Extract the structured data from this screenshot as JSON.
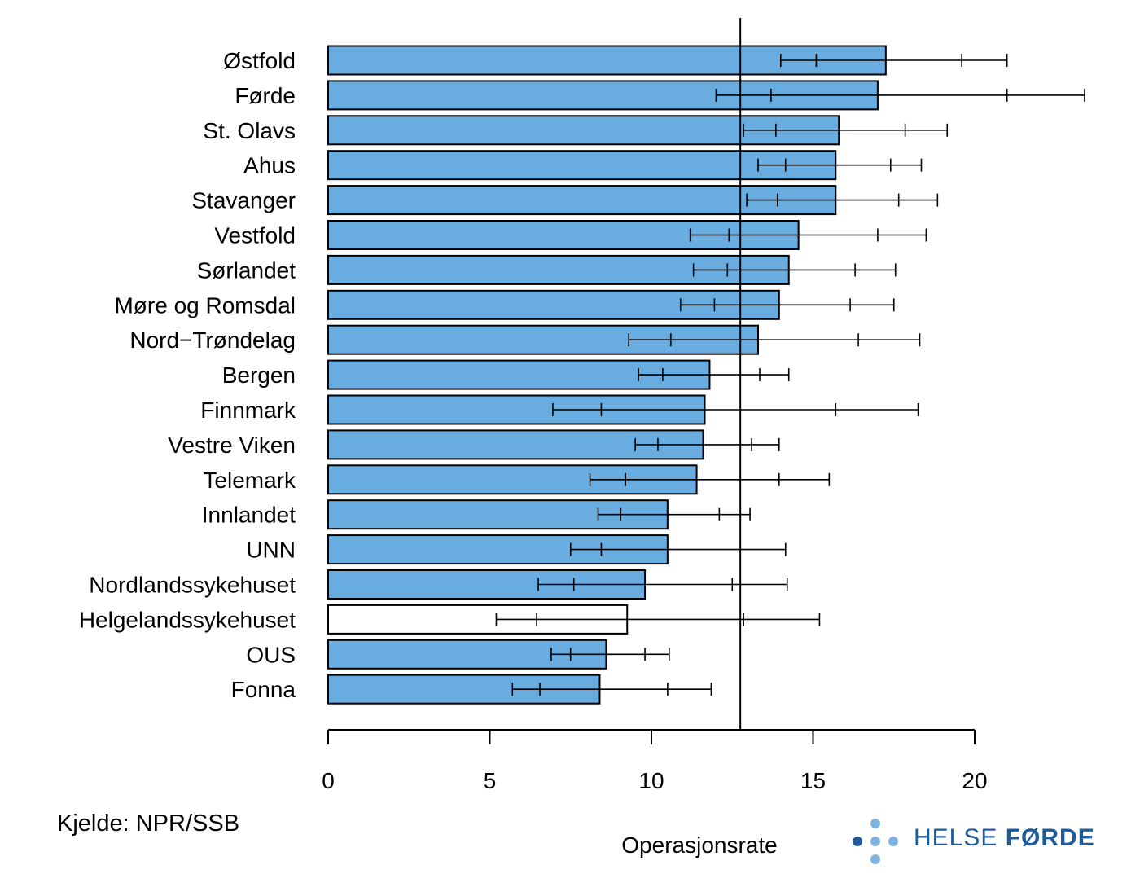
{
  "chart_data": {
    "type": "bar",
    "orientation": "horizontal",
    "categories": [
      "Østfold",
      "Førde",
      "St. Olavs",
      "Ahus",
      "Stavanger",
      "Vestfold",
      "Sørlandet",
      "Møre og Romsdal",
      "Nord−Trøndelag",
      "Bergen",
      "Finnmark",
      "Vestre Viken",
      "Telemark",
      "Innlandet",
      "UNN",
      "Nordlandssykehuset",
      "Helgelandssykehuset",
      "OUS",
      "Fonna"
    ],
    "values": [
      17.25,
      17.0,
      15.8,
      15.7,
      15.7,
      14.55,
      14.25,
      13.95,
      13.3,
      11.8,
      11.65,
      11.6,
      11.4,
      10.5,
      10.5,
      9.8,
      9.25,
      8.6,
      8.4
    ],
    "error_outer": [
      [
        14.0,
        21.0
      ],
      [
        12.0,
        23.4
      ],
      [
        12.85,
        19.15
      ],
      [
        13.3,
        18.35
      ],
      [
        12.95,
        18.85
      ],
      [
        11.2,
        18.5
      ],
      [
        11.3,
        17.55
      ],
      [
        10.9,
        17.5
      ],
      [
        9.3,
        18.3
      ],
      [
        9.6,
        14.25
      ],
      [
        6.95,
        18.25
      ],
      [
        9.5,
        13.95
      ],
      [
        8.1,
        15.5
      ],
      [
        8.35,
        13.05
      ],
      [
        7.5,
        14.15
      ],
      [
        6.5,
        14.2
      ],
      [
        5.2,
        15.2
      ],
      [
        6.9,
        10.55
      ],
      [
        5.7,
        11.85
      ]
    ],
    "error_inner": [
      [
        15.1,
        19.6
      ],
      [
        13.7,
        21.0
      ],
      [
        13.85,
        17.85
      ],
      [
        14.15,
        17.4
      ],
      [
        13.9,
        17.65
      ],
      [
        12.4,
        17.0
      ],
      [
        12.35,
        16.3
      ],
      [
        11.95,
        16.15
      ],
      [
        10.6,
        16.4
      ],
      [
        10.35,
        13.35
      ],
      [
        8.45,
        15.7
      ],
      [
        10.2,
        13.1
      ],
      [
        9.2,
        13.95
      ],
      [
        9.05,
        12.1
      ],
      [
        8.45,
        12.75
      ],
      [
        7.6,
        12.5
      ],
      [
        6.45,
        12.85
      ],
      [
        7.5,
        9.8
      ],
      [
        6.55,
        10.5
      ]
    ],
    "highlight_index": 16,
    "reference_value": 12.75,
    "xlim": [
      0,
      20
    ],
    "xticks": [
      0,
      5,
      10,
      15,
      20
    ],
    "xlabel": "Operasjonsrate",
    "colors": {
      "bar": "#69ADE0",
      "highlight": "#FFFFFF",
      "outline": "#000000"
    }
  },
  "footer": {
    "source": "Kjelde: NPR/SSB"
  },
  "logo": {
    "name": "HELSE FØRDE",
    "text_light": "HELSE ",
    "text_bold": "FØRDE",
    "color": "#1F5B99",
    "dot_color": "#7FB4E0"
  }
}
